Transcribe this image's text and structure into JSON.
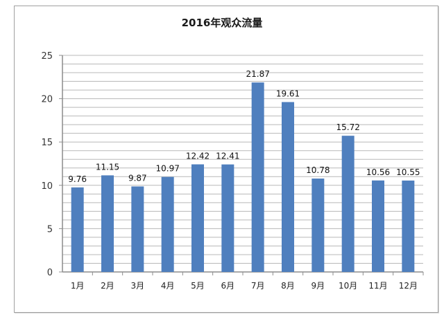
{
  "chart_data": {
    "type": "bar",
    "title": "2016年观众流量",
    "xlabel": "",
    "ylabel": "",
    "categories": [
      "1月",
      "2月",
      "3月",
      "4月",
      "5月",
      "6月",
      "7月",
      "8月",
      "9月",
      "10月",
      "11月",
      "12月"
    ],
    "values": [
      9.76,
      11.15,
      9.87,
      10.97,
      12.42,
      12.41,
      21.87,
      19.61,
      10.78,
      15.72,
      10.56,
      10.55
    ],
    "data_labels": [
      "9.76",
      "11.15",
      "9.87",
      "10.97",
      "12.42",
      "12.41",
      "21.87",
      "19.61",
      "10.78",
      "15.72",
      "10.56",
      "10.55"
    ],
    "ylim": [
      0,
      25
    ],
    "yticks": [
      0,
      5,
      10,
      15,
      20,
      25
    ],
    "grid": true,
    "minor_grid_step": 1,
    "legend": "none",
    "colors": {
      "bar": "#4f7fbe",
      "grid": "#b8b8b8",
      "axis": "#8c8c8c"
    }
  }
}
